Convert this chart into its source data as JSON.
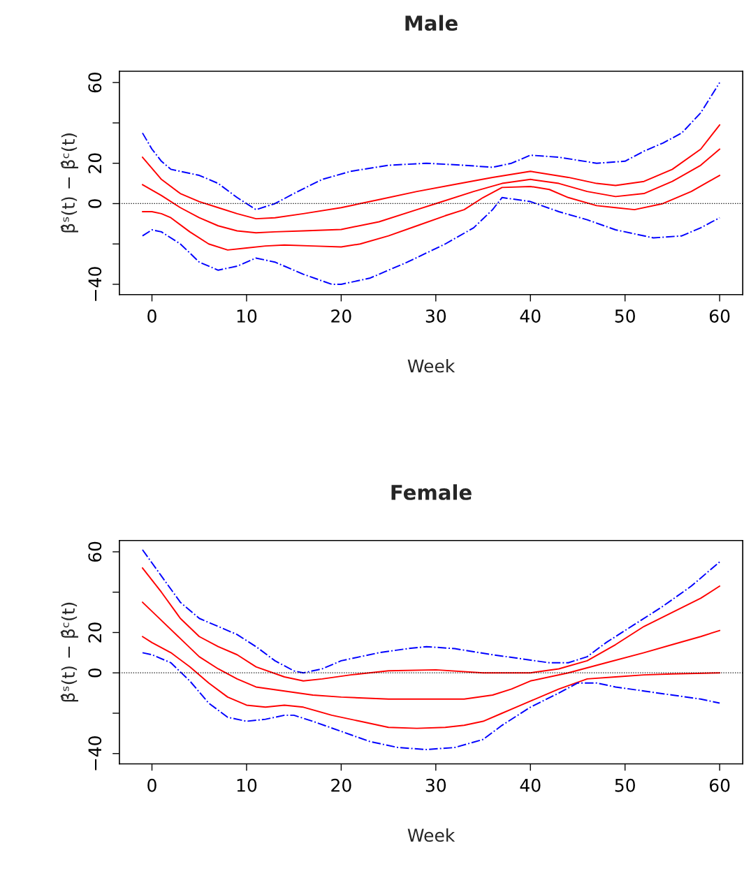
{
  "chart_data": [
    {
      "type": "line",
      "title": "Male",
      "xlabel": "Week",
      "ylabel": "β̂ˢ(t) − β̂ᶜ(t)",
      "xlim": [
        -3.44,
        62.44
      ],
      "ylim": [
        -45.1,
        65.6
      ],
      "xticks": [
        0,
        10,
        20,
        30,
        40,
        50,
        60
      ],
      "yticks": [
        {
          "value": -40,
          "label": "−40"
        },
        {
          "value": -20,
          "label": null
        },
        0,
        20,
        {
          "value": 40,
          "label": null
        },
        60
      ],
      "grid": false,
      "legend": false,
      "ref_lines": [
        {
          "axis": "y",
          "value": 0,
          "color": "#000000",
          "line_style": "dotted"
        }
      ],
      "series": [
        {
          "color": "#ff0000",
          "line_style": "solid",
          "x": [
            -1,
            1,
            3,
            5,
            7,
            9,
            11,
            13,
            16,
            20,
            24,
            28,
            32,
            36,
            40,
            44,
            47,
            49,
            52,
            55,
            58,
            60
          ],
          "values": [
            23,
            12,
            5,
            1,
            -2,
            -5,
            -7.5,
            -7,
            -5,
            -2,
            2,
            6,
            9.5,
            13,
            16,
            13,
            10,
            9,
            11,
            17,
            27,
            39
          ]
        },
        {
          "color": "#ff0000",
          "line_style": "solid",
          "x": [
            -1,
            1,
            3,
            5,
            7,
            9,
            11,
            13,
            16,
            20,
            24,
            28,
            30,
            34,
            37,
            40,
            43,
            46,
            49,
            52,
            55,
            58,
            60
          ],
          "values": [
            9.4,
            4,
            -2,
            -7,
            -11,
            -13.5,
            -14.5,
            -14,
            -13.5,
            -12.8,
            -9,
            -3,
            0,
            6,
            10,
            12,
            10,
            6,
            3.5,
            5,
            11,
            19,
            27
          ]
        },
        {
          "color": "#ff0000",
          "line_style": "solid",
          "x": [
            -1,
            0,
            1,
            2,
            4,
            6,
            8,
            10,
            12,
            14,
            17,
            20,
            22,
            25,
            28,
            31,
            33,
            35,
            37,
            40,
            42,
            44,
            47,
            49,
            51,
            54,
            57,
            60
          ],
          "values": [
            -4,
            -4,
            -5,
            -7,
            -14,
            -20,
            -23,
            -22,
            -21,
            -20.5,
            -21,
            -21.5,
            -20,
            -16,
            -11,
            -6,
            -3,
            3,
            8,
            8.5,
            7,
            3,
            -1,
            -2,
            -3,
            0,
            6,
            14
          ]
        },
        {
          "color": "#0000ff",
          "line_style": "dashdot",
          "x": [
            -1,
            0,
            1,
            2,
            5,
            7,
            9,
            10,
            11,
            13,
            15,
            18,
            21,
            25,
            29,
            33,
            36,
            38,
            40,
            43,
            47,
            50,
            52,
            54,
            56,
            58,
            60
          ],
          "values": [
            35,
            27,
            21,
            17,
            14,
            10,
            3,
            0,
            -3,
            0,
            5,
            12,
            16,
            19,
            20,
            19,
            18,
            20,
            24,
            23,
            20,
            21,
            26,
            30,
            35,
            45,
            60
          ]
        },
        {
          "color": "#0000ff",
          "line_style": "dashdot",
          "x": [
            -1,
            0,
            1,
            3,
            5,
            7,
            9,
            11,
            13,
            16,
            19,
            20,
            23,
            27,
            31,
            34,
            36,
            37,
            40,
            43,
            46,
            49,
            53,
            56,
            58,
            60
          ],
          "values": [
            -16,
            -13,
            -14,
            -20,
            -29,
            -33,
            -31,
            -27,
            -29,
            -35,
            -40,
            -40,
            -37,
            -29,
            -20,
            -12,
            -3,
            3,
            1,
            -4,
            -8,
            -13,
            -17,
            -16,
            -12,
            -7
          ]
        }
      ]
    },
    {
      "type": "line",
      "title": "Female",
      "xlabel": "Week",
      "ylabel": "β̂ˢ(t) − β̂ᶜ(t)",
      "xlim": [
        -3.44,
        62.44
      ],
      "ylim": [
        -45.1,
        65.6
      ],
      "xticks": [
        0,
        10,
        20,
        30,
        40,
        50,
        60
      ],
      "yticks": [
        {
          "value": -40,
          "label": "−40"
        },
        {
          "value": -20,
          "label": null
        },
        0,
        20,
        {
          "value": 40,
          "label": null
        },
        60
      ],
      "grid": false,
      "legend": false,
      "ref_lines": [
        {
          "axis": "y",
          "value": 0,
          "color": "#000000",
          "line_style": "dotted"
        }
      ],
      "series": [
        {
          "color": "#ff0000",
          "line_style": "solid",
          "x": [
            -1,
            1,
            3,
            5,
            7,
            9,
            11,
            14,
            16,
            18,
            21,
            25,
            30,
            35,
            40,
            43,
            46,
            49,
            52,
            55,
            58,
            60
          ],
          "values": [
            52,
            40,
            27,
            18,
            13,
            9,
            3,
            -2,
            -4,
            -3,
            -1,
            1,
            1.5,
            0,
            0,
            2,
            6,
            14,
            23,
            30,
            37,
            43
          ]
        },
        {
          "color": "#ff0000",
          "line_style": "solid",
          "x": [
            -1,
            1,
            3,
            5,
            7,
            9,
            11,
            14,
            17,
            20,
            25,
            30,
            33,
            36,
            38,
            40,
            44,
            48,
            52,
            55,
            58,
            60
          ],
          "values": [
            35,
            26,
            17,
            8,
            2,
            -3,
            -7,
            -9,
            -11,
            -12,
            -13,
            -13,
            -13,
            -11,
            -8,
            -4,
            0,
            5,
            10,
            14,
            18,
            21
          ]
        },
        {
          "color": "#ff0000",
          "line_style": "solid",
          "x": [
            -1,
            0,
            2,
            4,
            6,
            8,
            10,
            12,
            14,
            16,
            19,
            22,
            25,
            28,
            31,
            33,
            35,
            37,
            40,
            43,
            46,
            49,
            52,
            55,
            60
          ],
          "values": [
            18,
            15,
            10,
            3,
            -5,
            -12,
            -16,
            -17,
            -16,
            -17,
            -21,
            -24,
            -27,
            -27.5,
            -27,
            -26,
            -24,
            -20,
            -14,
            -8,
            -3,
            -2,
            -1,
            -0.5,
            0
          ]
        },
        {
          "color": "#0000ff",
          "line_style": "dashdot",
          "x": [
            -1,
            1,
            3,
            5,
            7,
            9,
            11,
            13,
            15,
            16,
            18,
            20,
            24,
            27,
            29,
            32,
            36,
            39,
            42,
            44,
            46,
            48,
            51,
            54,
            57,
            60
          ],
          "values": [
            61,
            48,
            35,
            27,
            23,
            19,
            13,
            6,
            1,
            0,
            2,
            6,
            10,
            12,
            13,
            12,
            9,
            7,
            5,
            5,
            8,
            15,
            24,
            33,
            43,
            55
          ]
        },
        {
          "color": "#0000ff",
          "line_style": "dashdot",
          "x": [
            -1,
            0,
            2,
            4,
            6,
            8,
            10,
            12,
            14,
            15,
            17,
            20,
            23,
            26,
            29,
            32,
            35,
            37,
            40,
            43,
            45,
            47,
            49,
            52,
            55,
            58,
            60
          ],
          "values": [
            10,
            9,
            5,
            -4,
            -15,
            -22,
            -24,
            -23,
            -21,
            -21,
            -24,
            -29,
            -34,
            -37,
            -38,
            -37,
            -33,
            -26,
            -17,
            -10,
            -5,
            -5,
            -7,
            -9,
            -11,
            -13,
            -15
          ]
        }
      ]
    }
  ]
}
